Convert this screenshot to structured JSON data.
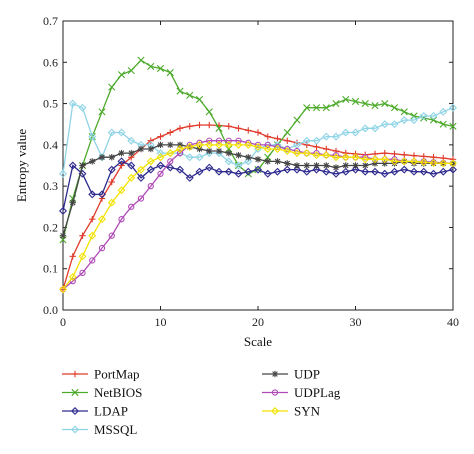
{
  "chart_data": {
    "type": "line",
    "xlabel": "Scale",
    "ylabel": "Entropy value",
    "xlim": [
      0,
      40
    ],
    "ylim": [
      0,
      0.7
    ],
    "x_ticks": [
      "0",
      "10",
      "20",
      "30",
      "40"
    ],
    "y_ticks": [
      "0.0",
      "0.1",
      "0.2",
      "0.3",
      "0.4",
      "0.5",
      "0.6",
      "0.7"
    ],
    "grid": false,
    "legend_position": "bottom",
    "x": [
      0,
      1,
      2,
      3,
      4,
      5,
      6,
      7,
      8,
      9,
      10,
      11,
      12,
      13,
      14,
      15,
      16,
      17,
      18,
      19,
      20,
      21,
      22,
      23,
      24,
      25,
      26,
      27,
      28,
      29,
      30,
      31,
      32,
      33,
      34,
      35,
      36,
      37,
      38,
      39,
      40
    ],
    "series": [
      {
        "name": "PortMap",
        "color": "#e03a2a",
        "marker": "plus",
        "values": [
          0.05,
          0.13,
          0.18,
          0.22,
          0.27,
          0.31,
          0.35,
          0.37,
          0.39,
          0.41,
          0.42,
          0.43,
          0.44,
          0.445,
          0.448,
          0.448,
          0.447,
          0.445,
          0.44,
          0.435,
          0.43,
          0.42,
          0.415,
          0.41,
          0.405,
          0.4,
          0.395,
          0.39,
          0.385,
          0.38,
          0.378,
          0.376,
          0.378,
          0.38,
          0.378,
          0.376,
          0.374,
          0.372,
          0.37,
          0.368,
          0.365
        ]
      },
      {
        "name": "NetBIOS",
        "color": "#4caa2a",
        "marker": "x",
        "values": [
          0.17,
          0.27,
          0.35,
          0.42,
          0.48,
          0.54,
          0.57,
          0.58,
          0.605,
          0.59,
          0.585,
          0.575,
          0.53,
          0.52,
          0.51,
          0.48,
          0.44,
          0.39,
          0.35,
          0.33,
          0.34,
          0.37,
          0.4,
          0.43,
          0.46,
          0.49,
          0.49,
          0.49,
          0.5,
          0.51,
          0.505,
          0.5,
          0.495,
          0.5,
          0.49,
          0.48,
          0.47,
          0.465,
          0.46,
          0.45,
          0.445
        ]
      },
      {
        "name": "LDAP",
        "color": "#2e2a8e",
        "marker": "diamond",
        "values": [
          0.24,
          0.35,
          0.33,
          0.28,
          0.28,
          0.34,
          0.36,
          0.35,
          0.32,
          0.34,
          0.35,
          0.345,
          0.34,
          0.32,
          0.335,
          0.345,
          0.335,
          0.335,
          0.33,
          0.335,
          0.34,
          0.33,
          0.335,
          0.34,
          0.34,
          0.335,
          0.34,
          0.335,
          0.33,
          0.335,
          0.34,
          0.335,
          0.335,
          0.33,
          0.335,
          0.34,
          0.335,
          0.335,
          0.33,
          0.335,
          0.34
        ]
      },
      {
        "name": "MSSQL",
        "color": "#8fd4e6",
        "marker": "diamond",
        "values": [
          0.33,
          0.5,
          0.49,
          0.42,
          0.37,
          0.43,
          0.43,
          0.41,
          0.4,
          0.4,
          0.38,
          0.38,
          0.38,
          0.37,
          0.37,
          0.38,
          0.38,
          0.36,
          0.35,
          0.36,
          0.39,
          0.4,
          0.4,
          0.39,
          0.4,
          0.41,
          0.41,
          0.42,
          0.42,
          0.43,
          0.43,
          0.44,
          0.44,
          0.45,
          0.45,
          0.46,
          0.46,
          0.47,
          0.47,
          0.48,
          0.49
        ]
      },
      {
        "name": "UDP",
        "color": "#444444",
        "marker": "star",
        "values": [
          0.18,
          0.26,
          0.35,
          0.36,
          0.37,
          0.37,
          0.38,
          0.38,
          0.39,
          0.39,
          0.4,
          0.4,
          0.4,
          0.395,
          0.39,
          0.385,
          0.385,
          0.38,
          0.375,
          0.37,
          0.365,
          0.36,
          0.36,
          0.355,
          0.35,
          0.35,
          0.35,
          0.35,
          0.345,
          0.35,
          0.35,
          0.35,
          0.355,
          0.355,
          0.355,
          0.36,
          0.355,
          0.355,
          0.355,
          0.355,
          0.355
        ]
      },
      {
        "name": "UDPLag",
        "color": "#b04ab8",
        "marker": "circle",
        "values": [
          0.05,
          0.07,
          0.09,
          0.12,
          0.15,
          0.18,
          0.22,
          0.25,
          0.27,
          0.3,
          0.33,
          0.36,
          0.38,
          0.4,
          0.405,
          0.41,
          0.41,
          0.41,
          0.41,
          0.405,
          0.4,
          0.4,
          0.395,
          0.39,
          0.385,
          0.38,
          0.38,
          0.375,
          0.375,
          0.37,
          0.37,
          0.37,
          0.365,
          0.365,
          0.365,
          0.36,
          0.36,
          0.36,
          0.358,
          0.356,
          0.355
        ]
      },
      {
        "name": "SYN",
        "color": "#f2e200",
        "marker": "diamond",
        "values": [
          0.05,
          0.08,
          0.13,
          0.18,
          0.22,
          0.26,
          0.29,
          0.32,
          0.34,
          0.36,
          0.37,
          0.38,
          0.39,
          0.395,
          0.4,
          0.4,
          0.4,
          0.4,
          0.4,
          0.4,
          0.395,
          0.39,
          0.39,
          0.385,
          0.38,
          0.38,
          0.375,
          0.375,
          0.37,
          0.37,
          0.37,
          0.365,
          0.365,
          0.365,
          0.36,
          0.36,
          0.36,
          0.358,
          0.356,
          0.355,
          0.355
        ]
      }
    ]
  }
}
